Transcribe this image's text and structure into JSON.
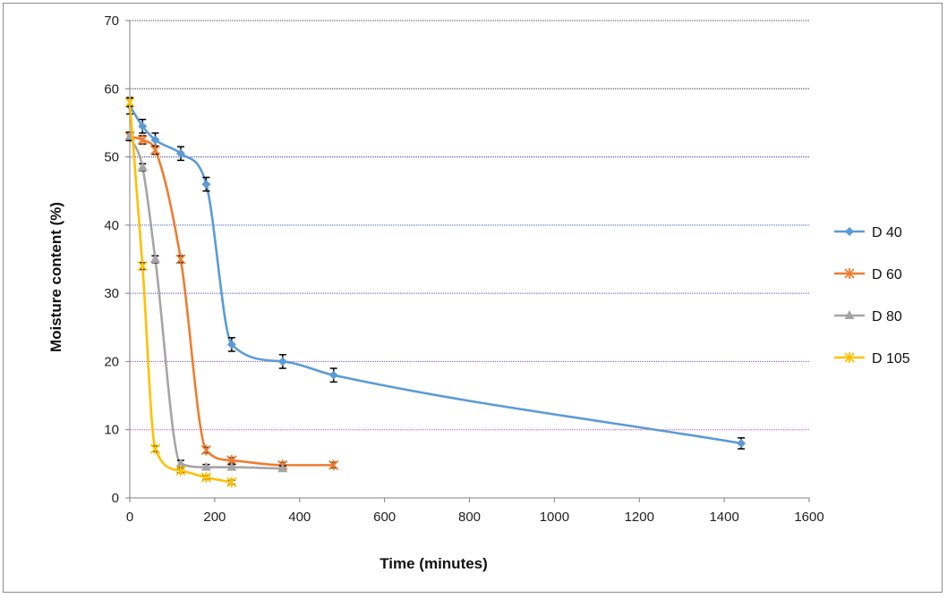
{
  "chart_data": {
    "type": "line",
    "xlabel": "Time (minutes)",
    "ylabel": "Moisture content (%)",
    "xlim": [
      0,
      1600
    ],
    "ylim": [
      0,
      70
    ],
    "xticks": [
      0,
      200,
      400,
      600,
      800,
      1000,
      1200,
      1400,
      1600
    ],
    "yticks": [
      0,
      10,
      20,
      30,
      40,
      50,
      60,
      70
    ],
    "grid": "horizontal",
    "legend_position": "right",
    "series": [
      {
        "name": "D 40",
        "color": "#5b9bd5",
        "marker": "diamond",
        "x": [
          0,
          30,
          60,
          120,
          180,
          240,
          360,
          480,
          1440
        ],
        "y": [
          57.5,
          54.5,
          52.5,
          50.5,
          46,
          22.5,
          20,
          18,
          8
        ],
        "err": [
          1.2,
          1,
          1,
          1,
          1,
          1,
          1,
          1,
          0.8
        ]
      },
      {
        "name": "D 60",
        "color": "#ed7d31",
        "marker": "star",
        "x": [
          0,
          30,
          60,
          120,
          180,
          240,
          360,
          480
        ],
        "y": [
          53,
          52.5,
          51,
          35,
          7,
          5.5,
          4.8,
          4.8
        ],
        "err": [
          0.6,
          0.6,
          0.6,
          0.5,
          0.4,
          0.4,
          0.4,
          0.4
        ]
      },
      {
        "name": "D 80",
        "color": "#a5a5a5",
        "marker": "triangle",
        "x": [
          0,
          30,
          60,
          120,
          180,
          240,
          360
        ],
        "y": [
          53,
          48.5,
          35,
          5,
          4.5,
          4.5,
          4.3
        ],
        "err": [
          0.6,
          0.5,
          0.5,
          0.5,
          0.4,
          0.4,
          0.4
        ]
      },
      {
        "name": "D 105",
        "color": "#ffc000",
        "marker": "star",
        "x": [
          0,
          30,
          60,
          120,
          180,
          240
        ],
        "y": [
          58,
          34,
          7.2,
          4,
          3,
          2.3
        ],
        "err": [
          0.6,
          0.5,
          0.4,
          0.3,
          0.3,
          0.3
        ]
      }
    ]
  }
}
